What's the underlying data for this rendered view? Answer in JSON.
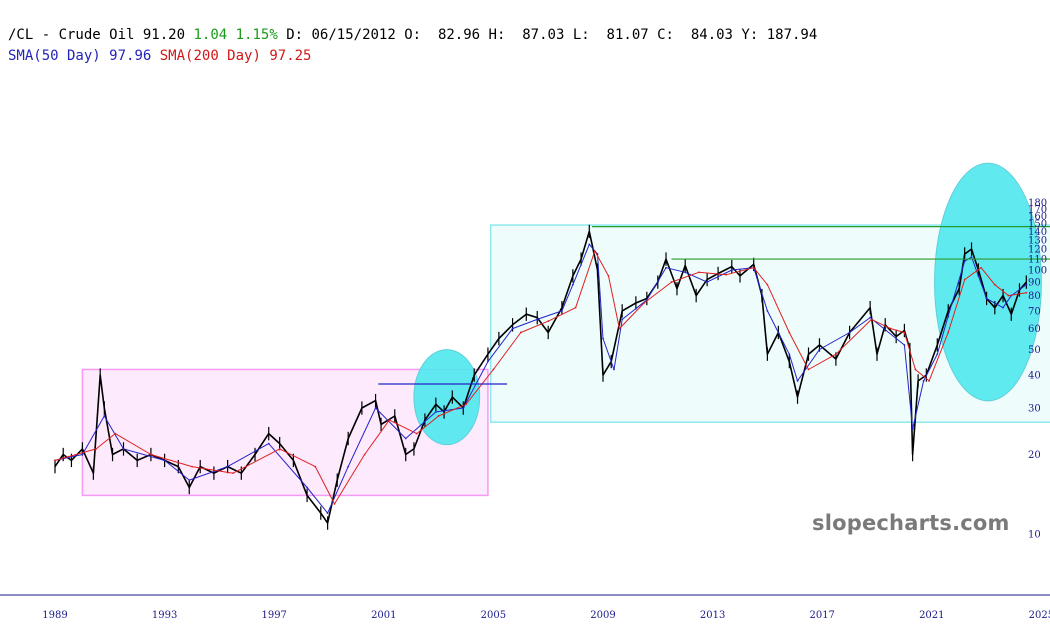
{
  "header": {
    "symbol": "/CL - Crude Oil",
    "last": "91.20",
    "change": "1.04",
    "change_pct": "1.15%",
    "date_label": "D: 06/15/2012",
    "open_label": "O:  82.96",
    "high_label": "H:  87.03",
    "low_label": "L:  81.07",
    "close_label": "C:  84.03",
    "y_label": "Y: 187.94",
    "sma50_label": "SMA(50 Day)",
    "sma50_value": "97.96",
    "sma200_label": "SMA(200 Day)",
    "sma200_value": "97.25"
  },
  "watermark": "slopecharts.com",
  "colors": {
    "price": "#000000",
    "sma50": "#2323c8",
    "sma200": "#e02020",
    "pink_box_fill": "#fdeafd",
    "pink_box_stroke": "#f59af5",
    "cyan_box_fill": "#eefcfc",
    "cyan_box_stroke": "#8ee8ee",
    "circle_fill": "#4fe8ee",
    "green_line": "#2a9a2a",
    "axis": "#1a1a8a"
  },
  "chart_data": {
    "type": "line",
    "y_scale": "log",
    "ylim": [
      10,
      180
    ],
    "xlim": [
      1989,
      2025
    ],
    "y_ticks": [
      10,
      20,
      30,
      40,
      50,
      60,
      70,
      80,
      90,
      100,
      110,
      120,
      130,
      140,
      150,
      160,
      170,
      180
    ],
    "x_ticks": [
      1989,
      1993,
      1997,
      2001,
      2005,
      2009,
      2013,
      2017,
      2021,
      2025
    ],
    "grid": false,
    "series": [
      {
        "name": "/CL - Crude Oil",
        "x": [
          1989.0,
          1989.3,
          1989.6,
          1990.0,
          1990.4,
          1990.65,
          1990.8,
          1991.1,
          1991.5,
          1992.0,
          1992.5,
          1993.0,
          1993.5,
          1993.9,
          1994.3,
          1994.8,
          1995.3,
          1995.8,
          1996.3,
          1996.8,
          1997.2,
          1997.7,
          1998.2,
          1998.7,
          1998.95,
          1999.3,
          1999.7,
          2000.2,
          2000.7,
          2000.9,
          2001.4,
          2001.8,
          2002.1,
          2002.5,
          2002.9,
          2003.2,
          2003.5,
          2003.9,
          2004.3,
          2004.8,
          2005.2,
          2005.7,
          2006.2,
          2006.6,
          2007.0,
          2007.5,
          2007.9,
          2008.2,
          2008.5,
          2008.8,
          2009.0,
          2009.3,
          2009.7,
          2010.2,
          2010.6,
          2011.0,
          2011.3,
          2011.7,
          2012.0,
          2012.4,
          2012.8,
          2013.2,
          2013.7,
          2014.0,
          2014.5,
          2014.8,
          2015.0,
          2015.4,
          2015.8,
          2016.1,
          2016.5,
          2016.9,
          2017.5,
          2018.0,
          2018.75,
          2019.0,
          2019.3,
          2019.7,
          2020.0,
          2020.2,
          2020.3,
          2020.5,
          2020.8,
          2021.2,
          2021.6,
          2022.0,
          2022.2,
          2022.45,
          2022.7,
          2023.0,
          2023.3,
          2023.6,
          2023.9,
          2024.2,
          2024.45
        ],
        "y": [
          18,
          20,
          19,
          21,
          17,
          40,
          30,
          20,
          21,
          19,
          20,
          19,
          18,
          15,
          18,
          17,
          18,
          17,
          20,
          24,
          22,
          19,
          14,
          12,
          11,
          16,
          23,
          30,
          32,
          26,
          28,
          20,
          21,
          27,
          31,
          29,
          33,
          30,
          40,
          48,
          55,
          62,
          68,
          66,
          58,
          72,
          95,
          110,
          140,
          100,
          40,
          45,
          70,
          75,
          78,
          90,
          110,
          85,
          104,
          80,
          92,
          97,
          103,
          95,
          105,
          80,
          48,
          58,
          45,
          33,
          48,
          52,
          46,
          58,
          72,
          48,
          62,
          56,
          59,
          50,
          20,
          38,
          40,
          52,
          70,
          85,
          115,
          120,
          100,
          78,
          72,
          80,
          68,
          84,
          90
        ]
      },
      {
        "name": "SMA(50 Day)",
        "x": [
          1989.0,
          1990.0,
          1990.8,
          1991.5,
          1993.0,
          1993.9,
          1995.3,
          1996.8,
          1998.2,
          1998.95,
          1999.7,
          2000.7,
          2001.8,
          2002.9,
          2003.9,
          2004.8,
          2005.7,
          2006.6,
          2007.5,
          2007.9,
          2008.5,
          2008.8,
          2009.0,
          2009.4,
          2009.7,
          2010.6,
          2011.3,
          2012.0,
          2012.8,
          2013.7,
          2014.5,
          2015.0,
          2015.8,
          2016.1,
          2016.9,
          2018.0,
          2018.75,
          2019.7,
          2020.0,
          2020.3,
          2020.7,
          2021.2,
          2021.6,
          2022.2,
          2022.45,
          2022.7,
          2023.0,
          2023.6,
          2023.9,
          2024.45
        ],
        "y": [
          19,
          20,
          28,
          21,
          19,
          16,
          18,
          22,
          15,
          12,
          18,
          30,
          23,
          29,
          30,
          45,
          60,
          65,
          70,
          88,
          125,
          115,
          55,
          42,
          65,
          77,
          102,
          98,
          90,
          100,
          102,
          70,
          48,
          38,
          50,
          58,
          66,
          55,
          52,
          25,
          38,
          48,
          67,
          108,
          112,
          95,
          78,
          72,
          80,
          88
        ]
      },
      {
        "name": "SMA(200 Day)",
        "x": [
          1989.0,
          1990.5,
          1991.2,
          1992.5,
          1994.0,
          1995.5,
          1997.2,
          1998.5,
          1999.2,
          2000.3,
          2001.2,
          2002.2,
          2003.0,
          2004.0,
          2005.0,
          2006.0,
          2007.0,
          2008.0,
          2008.7,
          2009.2,
          2009.6,
          2010.5,
          2011.5,
          2012.5,
          2013.5,
          2014.5,
          2015.0,
          2015.8,
          2016.5,
          2017.5,
          2018.8,
          2019.5,
          2020.0,
          2020.4,
          2020.9,
          2021.6,
          2022.2,
          2022.8,
          2023.3,
          2023.8,
          2024.45
        ],
        "y": [
          19,
          21,
          24,
          20,
          18,
          17,
          21,
          18,
          13,
          20,
          27,
          24,
          28,
          31,
          42,
          58,
          64,
          72,
          118,
          95,
          60,
          75,
          90,
          98,
          96,
          102,
          88,
          58,
          42,
          48,
          65,
          60,
          58,
          42,
          38,
          58,
          92,
          102,
          88,
          80,
          82
        ]
      }
    ],
    "annotations": [
      {
        "type": "rect",
        "label": "pink_box",
        "x0": 1990.0,
        "x1": 2004.8,
        "y0": 14,
        "y1": 42
      },
      {
        "type": "rect",
        "label": "cyan_box",
        "x0": 2004.9,
        "x1": 2025.5,
        "y0": 26.5,
        "y1": 148
      },
      {
        "type": "hline",
        "label": "resistance_2008",
        "x0": 2008.6,
        "x1": 2026.4,
        "y": 146
      },
      {
        "type": "hline",
        "label": "resistance_2011",
        "x0": 2011.5,
        "x1": 2026.4,
        "y": 110
      },
      {
        "type": "hline",
        "label": "resistance_2000",
        "x0": 2000.8,
        "x1": 2005.5,
        "y": 37
      },
      {
        "type": "circle",
        "label": "circle_2003",
        "cx": 2003.3,
        "cy": 33,
        "rx": 1.2,
        "ry_log_factor": 0.18
      },
      {
        "type": "circle",
        "label": "circle_2022",
        "cx": 2023.05,
        "cy": 90,
        "rx": 1.95,
        "ry_log_factor": 0.45
      }
    ]
  }
}
